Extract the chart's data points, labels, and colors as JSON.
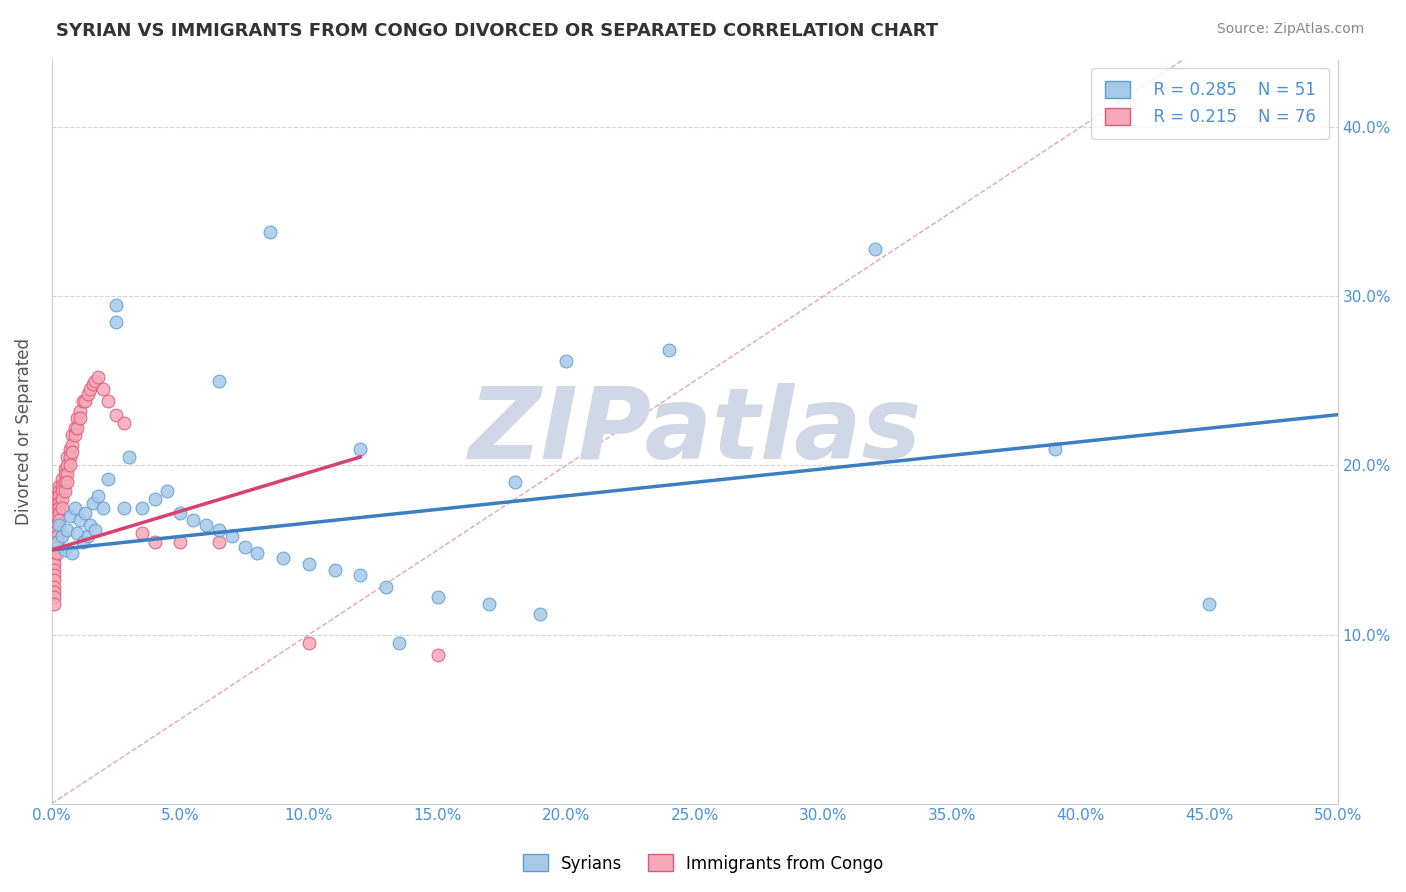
{
  "title": "SYRIAN VS IMMIGRANTS FROM CONGO DIVORCED OR SEPARATED CORRELATION CHART",
  "source": "Source: ZipAtlas.com",
  "ylabel": "Divorced or Separated",
  "xlim": [
    0.0,
    0.5
  ],
  "ylim": [
    0.0,
    0.44
  ],
  "xtick_vals": [
    0.0,
    0.05,
    0.1,
    0.15,
    0.2,
    0.25,
    0.3,
    0.35,
    0.4,
    0.45,
    0.5
  ],
  "ytick_vals": [
    0.0,
    0.1,
    0.2,
    0.3,
    0.4
  ],
  "legend_r1": "R = 0.285",
  "legend_n1": "N = 51",
  "legend_r2": "R = 0.215",
  "legend_n2": "N = 76",
  "label_syrian": "Syrians",
  "label_congo": "Immigrants from Congo",
  "color_syrian_face": "#a8c8e8",
  "color_syrian_edge": "#5a9fd4",
  "color_congo_face": "#f4a8b8",
  "color_congo_edge": "#e05878",
  "color_line_syrian": "#3a7fc1",
  "color_line_congo": "#d94070",
  "color_diag": "#e090a0",
  "watermark": "ZIPatlas",
  "watermark_color": "#d0d8e8",
  "syrians_x": [
    0.002,
    0.003,
    0.004,
    0.005,
    0.006,
    0.007,
    0.008,
    0.009,
    0.01,
    0.011,
    0.012,
    0.013,
    0.014,
    0.015,
    0.016,
    0.017,
    0.018,
    0.02,
    0.022,
    0.025,
    0.028,
    0.03,
    0.035,
    0.04,
    0.045,
    0.05,
    0.055,
    0.06,
    0.065,
    0.07,
    0.075,
    0.08,
    0.09,
    0.1,
    0.11,
    0.12,
    0.13,
    0.15,
    0.17,
    0.19,
    0.065,
    0.12,
    0.18,
    0.2,
    0.24,
    0.32,
    0.39,
    0.45,
    0.025,
    0.085,
    0.135
  ],
  "syrians_y": [
    0.155,
    0.165,
    0.158,
    0.15,
    0.162,
    0.17,
    0.148,
    0.175,
    0.16,
    0.168,
    0.155,
    0.172,
    0.158,
    0.165,
    0.178,
    0.162,
    0.182,
    0.175,
    0.192,
    0.295,
    0.175,
    0.205,
    0.175,
    0.18,
    0.185,
    0.172,
    0.168,
    0.165,
    0.162,
    0.158,
    0.152,
    0.148,
    0.145,
    0.142,
    0.138,
    0.135,
    0.128,
    0.122,
    0.118,
    0.112,
    0.25,
    0.21,
    0.19,
    0.262,
    0.268,
    0.328,
    0.21,
    0.118,
    0.285,
    0.338,
    0.095
  ],
  "congo_x": [
    0.001,
    0.001,
    0.001,
    0.001,
    0.001,
    0.001,
    0.001,
    0.001,
    0.001,
    0.001,
    0.001,
    0.001,
    0.001,
    0.001,
    0.001,
    0.001,
    0.001,
    0.002,
    0.002,
    0.002,
    0.002,
    0.002,
    0.002,
    0.002,
    0.002,
    0.002,
    0.002,
    0.003,
    0.003,
    0.003,
    0.003,
    0.003,
    0.003,
    0.003,
    0.004,
    0.004,
    0.004,
    0.004,
    0.004,
    0.005,
    0.005,
    0.005,
    0.005,
    0.006,
    0.006,
    0.006,
    0.006,
    0.007,
    0.007,
    0.007,
    0.008,
    0.008,
    0.008,
    0.009,
    0.009,
    0.01,
    0.01,
    0.011,
    0.011,
    0.012,
    0.013,
    0.014,
    0.015,
    0.016,
    0.017,
    0.018,
    0.02,
    0.022,
    0.025,
    0.028,
    0.035,
    0.04,
    0.05,
    0.065,
    0.1,
    0.15
  ],
  "congo_y": [
    0.165,
    0.16,
    0.158,
    0.155,
    0.152,
    0.148,
    0.145,
    0.142,
    0.138,
    0.135,
    0.132,
    0.128,
    0.125,
    0.122,
    0.118,
    0.172,
    0.178,
    0.182,
    0.178,
    0.175,
    0.17,
    0.165,
    0.162,
    0.158,
    0.155,
    0.152,
    0.148,
    0.188,
    0.185,
    0.182,
    0.178,
    0.175,
    0.172,
    0.168,
    0.192,
    0.188,
    0.185,
    0.18,
    0.175,
    0.198,
    0.195,
    0.19,
    0.185,
    0.205,
    0.2,
    0.195,
    0.19,
    0.21,
    0.205,
    0.2,
    0.218,
    0.212,
    0.208,
    0.222,
    0.218,
    0.228,
    0.222,
    0.232,
    0.228,
    0.238,
    0.238,
    0.242,
    0.245,
    0.248,
    0.25,
    0.252,
    0.245,
    0.238,
    0.23,
    0.225,
    0.16,
    0.155,
    0.155,
    0.155,
    0.095,
    0.088
  ]
}
